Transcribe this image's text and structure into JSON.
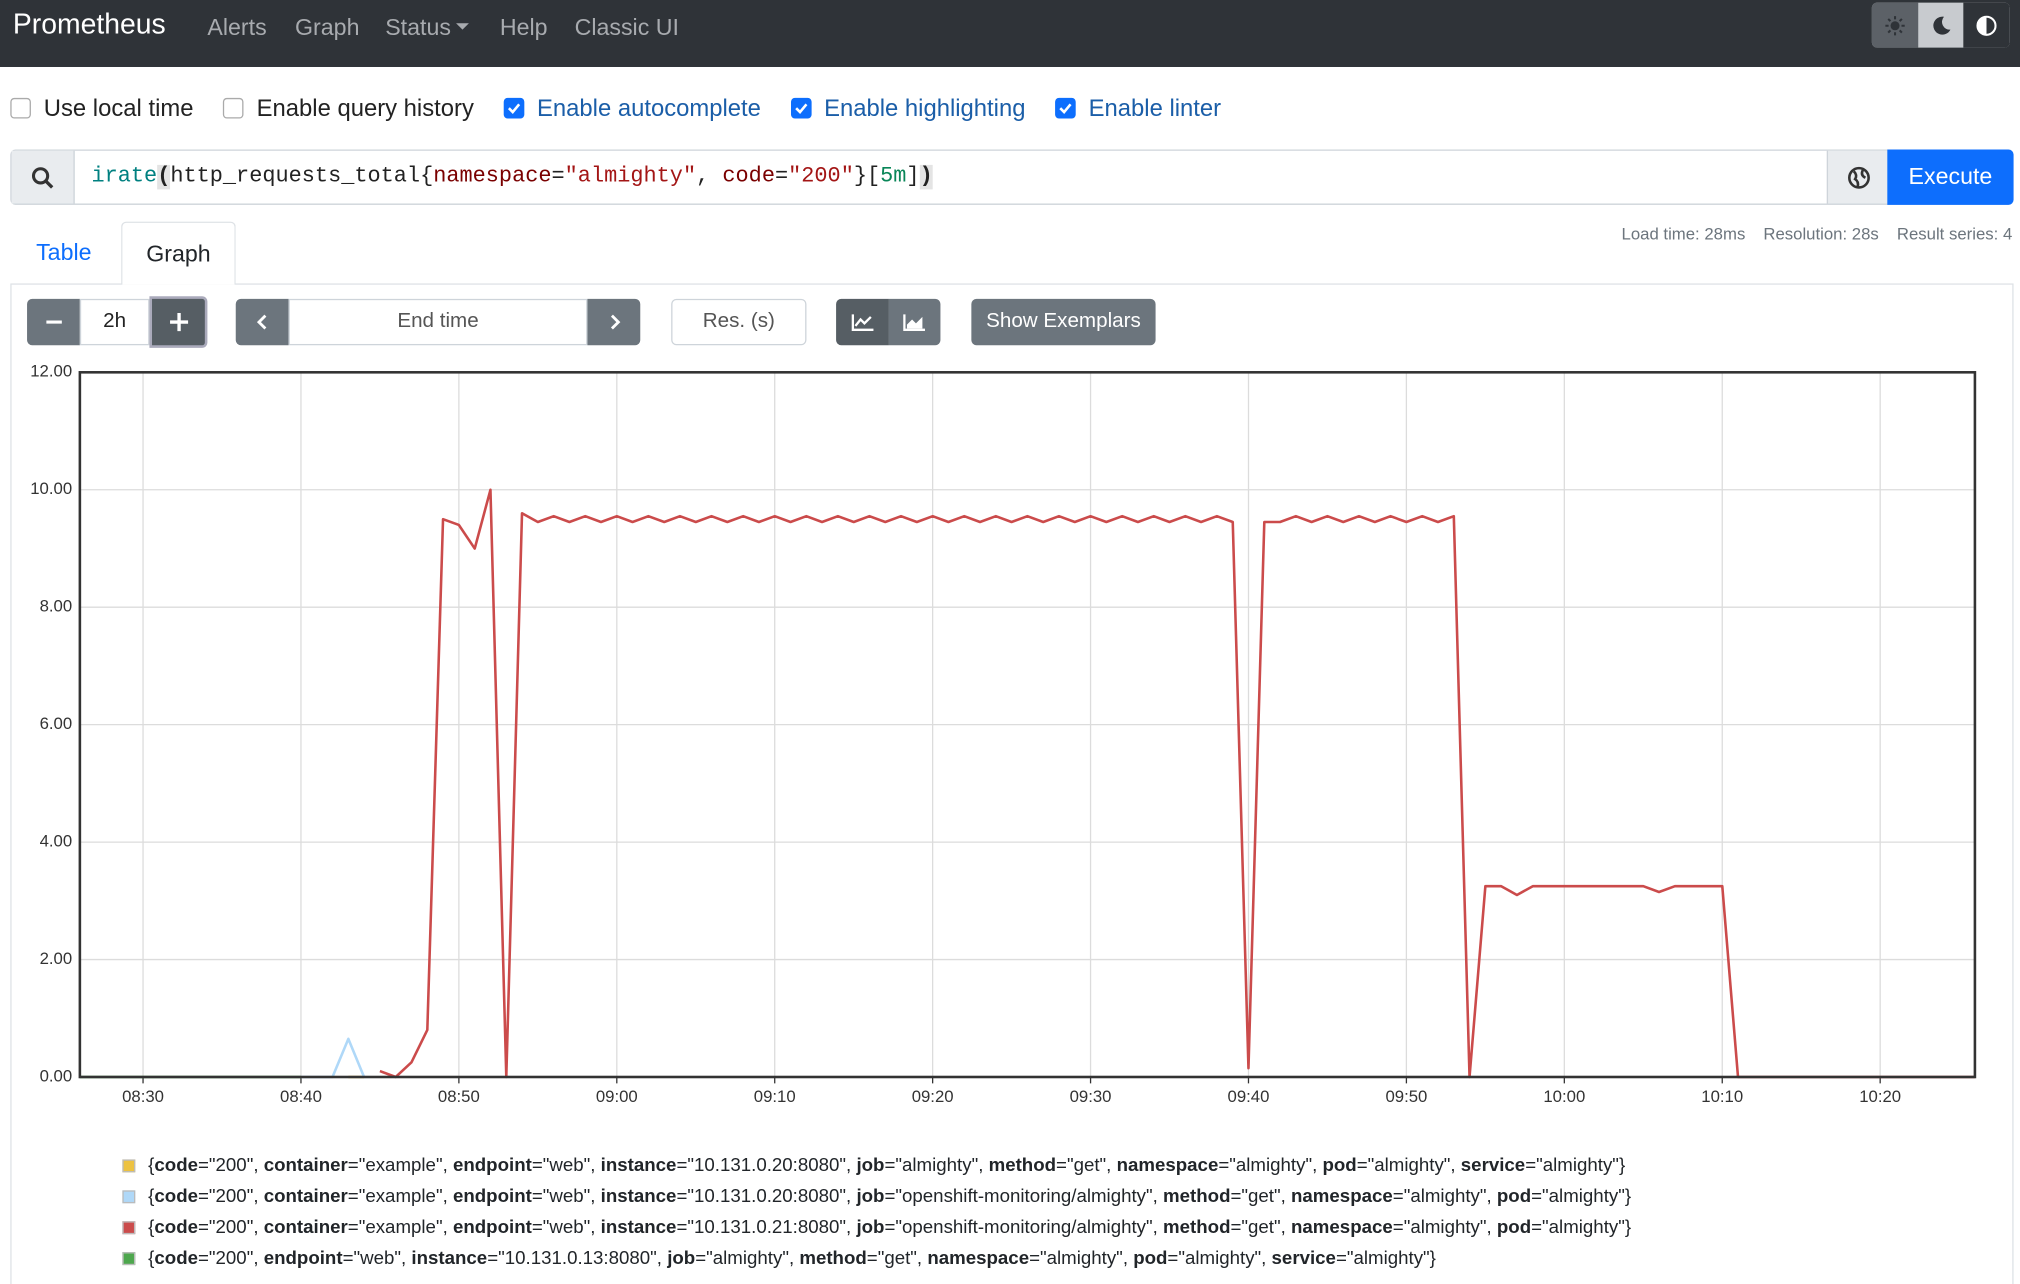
{
  "navbar": {
    "brand": "Prometheus",
    "links": [
      "Alerts",
      "Graph",
      "Status",
      "Help",
      "Classic UI"
    ]
  },
  "options": [
    {
      "label": "Use local time",
      "checked": false
    },
    {
      "label": "Enable query history",
      "checked": false
    },
    {
      "label": "Enable autocomplete",
      "checked": true
    },
    {
      "label": "Enable highlighting",
      "checked": true
    },
    {
      "label": "Enable linter",
      "checked": true
    }
  ],
  "query": "irate(http_requests_total{namespace=\"almighty\", code=\"200\"}[5m])",
  "execute": "Execute",
  "tabs": [
    "Table",
    "Graph"
  ],
  "stats": [
    "Load time: 28ms",
    "Resolution: 28s",
    "Result series: 4"
  ],
  "controls": {
    "range": "2h",
    "end_time": "End time",
    "resolution": "Res. (s)",
    "exemplars": "Show Exemplars"
  },
  "chart_data": {
    "type": "line",
    "xlim": [
      "08:26",
      "10:26"
    ],
    "xticks": [
      "08:30",
      "08:40",
      "08:50",
      "09:00",
      "09:10",
      "09:20",
      "09:30",
      "09:40",
      "09:50",
      "10:00",
      "10:10",
      "10:20"
    ],
    "ylim": [
      0,
      12
    ],
    "yticks": [
      {
        "value": 0,
        "label": "0.00"
      },
      {
        "value": 2,
        "label": "2.00"
      },
      {
        "value": 4,
        "label": "4.00"
      },
      {
        "value": 6,
        "label": "6.00"
      },
      {
        "value": 8,
        "label": "8.00"
      },
      {
        "value": 10,
        "label": "10.00"
      },
      {
        "value": 12,
        "label": "12.00"
      }
    ],
    "grid": true,
    "series": [
      {
        "name": "{code=\"200\", container=\"example\", endpoint=\"web\", instance=\"10.131.0.20:8080\", job=\"almighty\", method=\"get\", namespace=\"almighty\", pod=\"almighty\", service=\"almighty\"}",
        "color": "#edc240",
        "x": [
          "08:43",
          "08:44"
        ],
        "values": [
          0,
          0
        ]
      },
      {
        "name": "{code=\"200\", container=\"example\", endpoint=\"web\", instance=\"10.131.0.20:8080\", job=\"openshift-monitoring/almighty\", method=\"get\", namespace=\"almighty\", pod=\"almighty\"}",
        "color": "#afd8f8",
        "x": [
          "08:40",
          "08:41",
          "08:42",
          "08:43",
          "08:44"
        ],
        "values": [
          0,
          0,
          0,
          0.65,
          0
        ]
      },
      {
        "name": "{code=\"200\", container=\"example\", endpoint=\"web\", instance=\"10.131.0.21:8080\", job=\"openshift-monitoring/almighty\", method=\"get\", namespace=\"almighty\", pod=\"almighty\"}",
        "color": "#cb4b4b",
        "x": [
          "08:45",
          "08:46",
          "08:47",
          "08:48",
          "08:49",
          "08:50",
          "08:51",
          "08:52",
          "08:53",
          "08:54",
          "08:55",
          "08:56",
          "08:57",
          "08:58",
          "08:59",
          "09:00",
          "09:01",
          "09:02",
          "09:03",
          "09:04",
          "09:05",
          "09:06",
          "09:07",
          "09:08",
          "09:09",
          "09:10",
          "09:11",
          "09:12",
          "09:13",
          "09:14",
          "09:15",
          "09:16",
          "09:17",
          "09:18",
          "09:19",
          "09:20",
          "09:21",
          "09:22",
          "09:23",
          "09:24",
          "09:25",
          "09:26",
          "09:27",
          "09:28",
          "09:29",
          "09:30",
          "09:31",
          "09:32",
          "09:33",
          "09:34",
          "09:35",
          "09:36",
          "09:37",
          "09:38",
          "09:39",
          "09:40",
          "09:41",
          "09:42",
          "09:43",
          "09:44",
          "09:45",
          "09:46",
          "09:47",
          "09:48",
          "09:49",
          "09:50",
          "09:51",
          "09:52",
          "09:53",
          "09:54",
          "09:55",
          "09:56",
          "09:57",
          "09:58",
          "09:59",
          "10:00",
          "10:01",
          "10:02",
          "10:03",
          "10:04",
          "10:05",
          "10:06",
          "10:07",
          "10:08",
          "10:09",
          "10:10",
          "10:11",
          "10:12",
          "10:13",
          "10:14",
          "10:15",
          "10:16",
          "10:17",
          "10:18",
          "10:19",
          "10:20",
          "10:21",
          "10:22",
          "10:23",
          "10:24",
          "10:25",
          "10:26"
        ],
        "values": [
          0.1,
          0,
          0.25,
          0.8,
          9.5,
          9.4,
          9.0,
          10.0,
          0,
          9.6,
          9.45,
          9.55,
          9.45,
          9.55,
          9.45,
          9.55,
          9.45,
          9.55,
          9.45,
          9.55,
          9.45,
          9.55,
          9.45,
          9.55,
          9.45,
          9.55,
          9.45,
          9.55,
          9.45,
          9.55,
          9.45,
          9.55,
          9.45,
          9.55,
          9.45,
          9.55,
          9.45,
          9.55,
          9.45,
          9.55,
          9.45,
          9.55,
          9.45,
          9.55,
          9.45,
          9.55,
          9.45,
          9.55,
          9.45,
          9.55,
          9.45,
          9.55,
          9.45,
          9.55,
          9.45,
          0.15,
          9.45,
          9.45,
          9.55,
          9.45,
          9.55,
          9.45,
          9.55,
          9.45,
          9.55,
          9.45,
          9.55,
          9.45,
          9.55,
          0,
          3.25,
          3.25,
          3.1,
          3.25,
          3.25,
          3.25,
          3.25,
          3.25,
          3.25,
          3.25,
          3.25,
          3.15,
          3.25,
          3.25,
          3.25,
          3.25,
          0,
          0,
          0,
          0,
          0,
          0,
          0,
          0,
          0,
          0,
          0,
          0,
          0,
          0,
          0,
          0
        ]
      },
      {
        "name": "{code=\"200\", endpoint=\"web\", instance=\"10.131.0.13:8080\", job=\"almighty\", method=\"get\", namespace=\"almighty\", pod=\"almighty\", service=\"almighty\"}",
        "color": "#4da74d",
        "x": [
          "08:26",
          "08:27",
          "08:28",
          "08:29",
          "08:30",
          "08:31",
          "08:32",
          "08:33",
          "08:34",
          "08:35",
          "08:36",
          "08:37",
          "08:38",
          "08:39",
          "08:40"
        ],
        "values": [
          0,
          0,
          0,
          0,
          0,
          0,
          0,
          0,
          0,
          0,
          0,
          0,
          0,
          0,
          0
        ]
      }
    ]
  }
}
